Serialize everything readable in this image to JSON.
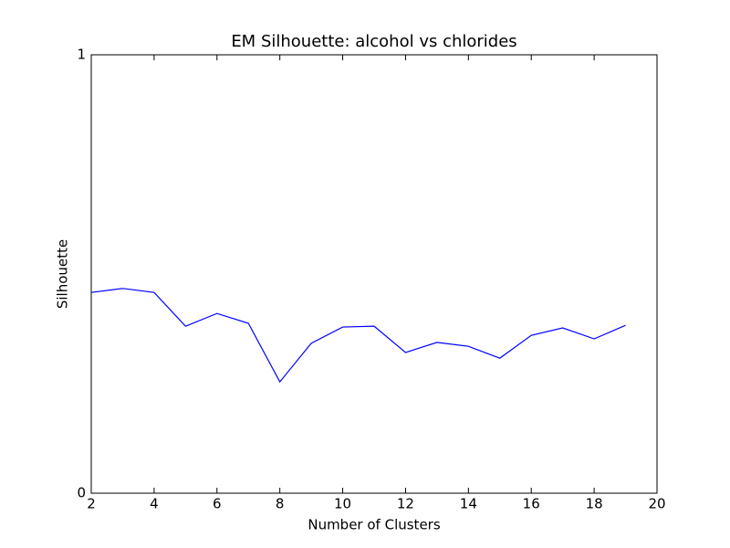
{
  "chart_data": {
    "type": "line",
    "title": "EM Silhouette: alcohol vs chlorides",
    "xlabel": "Number of Clusters",
    "ylabel": "Silhouette",
    "x": [
      2,
      3,
      4,
      5,
      6,
      7,
      8,
      9,
      10,
      11,
      12,
      13,
      14,
      15,
      16,
      17,
      18,
      19
    ],
    "series": [
      {
        "color": "#0000ff",
        "values": [
          0.458,
          0.467,
          0.458,
          0.381,
          0.41,
          0.3875,
          0.254,
          0.342,
          0.379,
          0.381,
          0.321,
          0.344,
          0.335,
          0.308,
          0.36,
          0.377,
          0.352,
          0.383
        ]
      }
    ],
    "xlim": [
      2,
      20
    ],
    "xticks": [
      2,
      4,
      6,
      8,
      10,
      12,
      14,
      16,
      18,
      20
    ],
    "ylim": [
      0,
      1
    ],
    "yticks": [
      0,
      1
    ],
    "grid": false
  }
}
